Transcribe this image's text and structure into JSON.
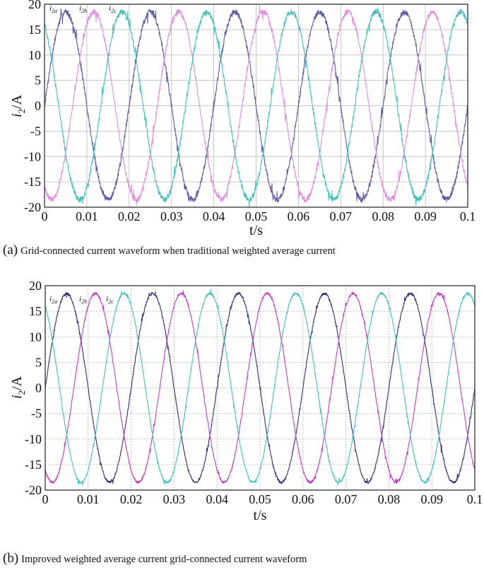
{
  "chart_data": [
    {
      "type": "line",
      "caption_tag": "(a)",
      "caption_text": "Grid-connected current waveform when traditional weighted average current",
      "xlabel": "t/s",
      "ylabel_main": "i",
      "ylabel_sub": "2",
      "ylabel_unit": "/A",
      "xlim": [
        0,
        0.1
      ],
      "ylim": [
        -20,
        20
      ],
      "grid": true,
      "x_ticks": [
        "0",
        "0.01",
        "0.02",
        "0.03",
        "0.04",
        "0.05",
        "0.06",
        "0.07",
        "0.08",
        "0.09",
        "0.1"
      ],
      "y_ticks": [
        "20",
        "15",
        "10",
        "5",
        "0",
        "-5",
        "-10",
        "-15",
        "-20"
      ],
      "frequency_hz": 50,
      "series": [
        {
          "name": "i2a",
          "label_main": "i",
          "label_sub": "2a",
          "amplitude": 18.5,
          "phase_deg": 0,
          "color": "#5a5aa8"
        },
        {
          "name": "i2b",
          "label_main": "i",
          "label_sub": "2b",
          "amplitude": 18.5,
          "phase_deg": -120,
          "color": "#e28ee2"
        },
        {
          "name": "i2c",
          "label_main": "i",
          "label_sub": "2c",
          "amplitude": 18.5,
          "phase_deg": 120,
          "color": "#45c2bd"
        }
      ]
    },
    {
      "type": "line",
      "caption_tag": "(b)",
      "caption_text": "Improved weighted average current grid-connected current waveform",
      "xlabel": "t/s",
      "ylabel_main": "i",
      "ylabel_sub": "2",
      "ylabel_unit": "/A",
      "xlim": [
        0,
        0.1
      ],
      "ylim": [
        -20,
        20
      ],
      "grid": true,
      "x_ticks": [
        "0",
        "0.01",
        "0.02",
        "0.03",
        "0.04",
        "0.05",
        "0.06",
        "0.07",
        "0.08",
        "0.09",
        "0.1"
      ],
      "y_ticks": [
        "20",
        "15",
        "10",
        "5",
        "0",
        "-5",
        "-10",
        "-15",
        "-20"
      ],
      "frequency_hz": 50,
      "series": [
        {
          "name": "i2a",
          "label_main": "i",
          "label_sub": "2a",
          "amplitude": 18.5,
          "phase_deg": 0,
          "color": "#2e2e78"
        },
        {
          "name": "i2b",
          "label_main": "i",
          "label_sub": "2b",
          "amplitude": 18.5,
          "phase_deg": -120,
          "color": "#c43cc4"
        },
        {
          "name": "i2c",
          "label_main": "i",
          "label_sub": "2c",
          "amplitude": 18.5,
          "phase_deg": 120,
          "color": "#40c0bc"
        }
      ]
    }
  ]
}
